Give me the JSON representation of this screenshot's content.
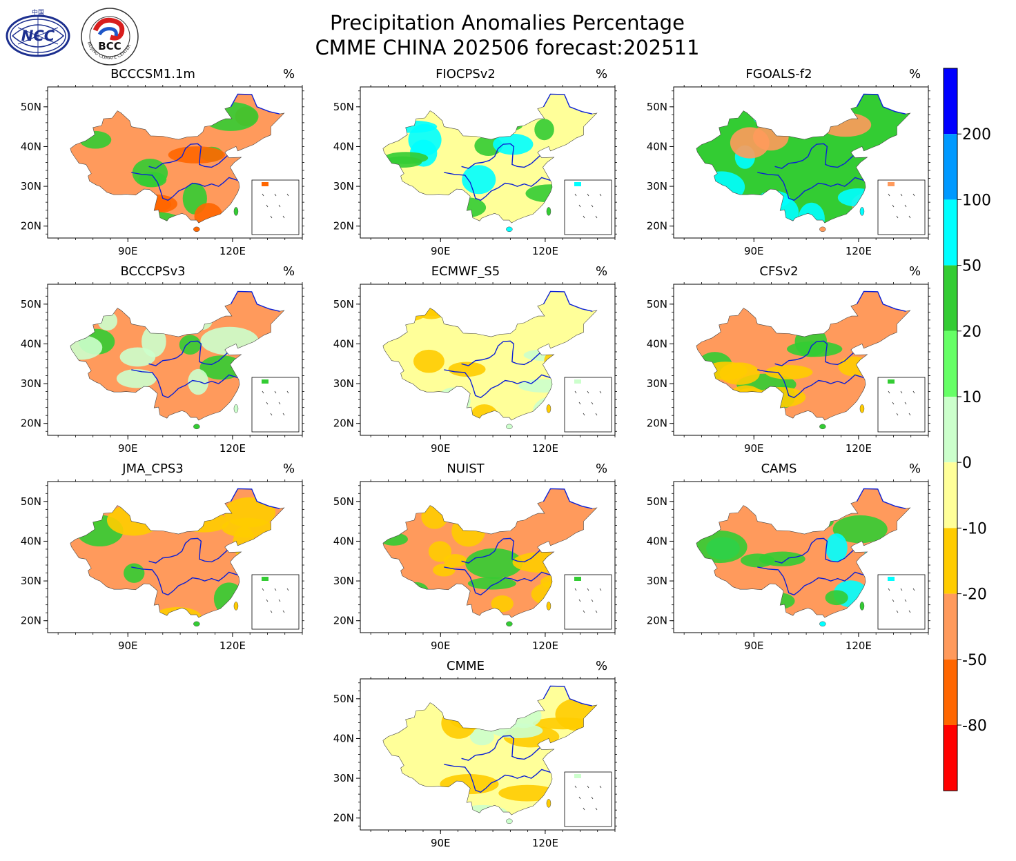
{
  "header": {
    "title_line1": "Precipitation Anomalies Percentage",
    "title_line2": "CMME CHINA 202506 forecast:202511",
    "logo_left_text": "NCC",
    "logo_left_small": "中国",
    "logo_right_text": "BCC",
    "logo_right_ring": "BEIJING CLIMATE CENTER"
  },
  "panels": [
    {
      "model": "BCCCSM1.1m",
      "unit": "%",
      "dominant": "#ff9a5c",
      "secondary": "#33cc33",
      "accent": "#ff6600"
    },
    {
      "model": "FIOCPSv2",
      "unit": "%",
      "dominant": "#ffff99",
      "secondary": "#33cc33",
      "accent": "#00ffff"
    },
    {
      "model": "FGOALS-f2",
      "unit": "%",
      "dominant": "#33cc33",
      "secondary": "#00ffff",
      "accent": "#ff9a5c"
    },
    {
      "model": "BCCCPSv3",
      "unit": "%",
      "dominant": "#ff9a5c",
      "secondary": "#ccffcc",
      "accent": "#33cc33"
    },
    {
      "model": "ECMWF_S5",
      "unit": "%",
      "dominant": "#ffff99",
      "secondary": "#ffcc00",
      "accent": "#ccffcc"
    },
    {
      "model": "CFSv2",
      "unit": "%",
      "dominant": "#ff9a5c",
      "secondary": "#ffcc00",
      "accent": "#33cc33"
    },
    {
      "model": "JMA_CPS3",
      "unit": "%",
      "dominant": "#ff9a5c",
      "secondary": "#ffcc00",
      "accent": "#33cc33"
    },
    {
      "model": "NUIST",
      "unit": "%",
      "dominant": "#ff9a5c",
      "secondary": "#ffcc00",
      "accent": "#33cc33"
    },
    {
      "model": "CAMS",
      "unit": "%",
      "dominant": "#ff9a5c",
      "secondary": "#33cc33",
      "accent": "#00ffff"
    },
    {
      "model": "CMME",
      "unit": "%",
      "dominant": "#ffff99",
      "secondary": "#ffcc00",
      "accent": "#ccffcc"
    }
  ],
  "axes": {
    "lat_labels": [
      "50N",
      "40N",
      "30N",
      "20N"
    ],
    "lon_labels": [
      "90E",
      "120E"
    ]
  },
  "colorbar": {
    "colors": [
      "#0000ff",
      "#0099ff",
      "#00ffff",
      "#33cc33",
      "#66ff66",
      "#ccffcc",
      "#ffff99",
      "#ffcc00",
      "#ff9a5c",
      "#ff6600",
      "#ff0000"
    ],
    "labels": [
      "200",
      "100",
      "50",
      "20",
      "10",
      "0",
      "-10",
      "-20",
      "-50",
      "-80"
    ]
  }
}
